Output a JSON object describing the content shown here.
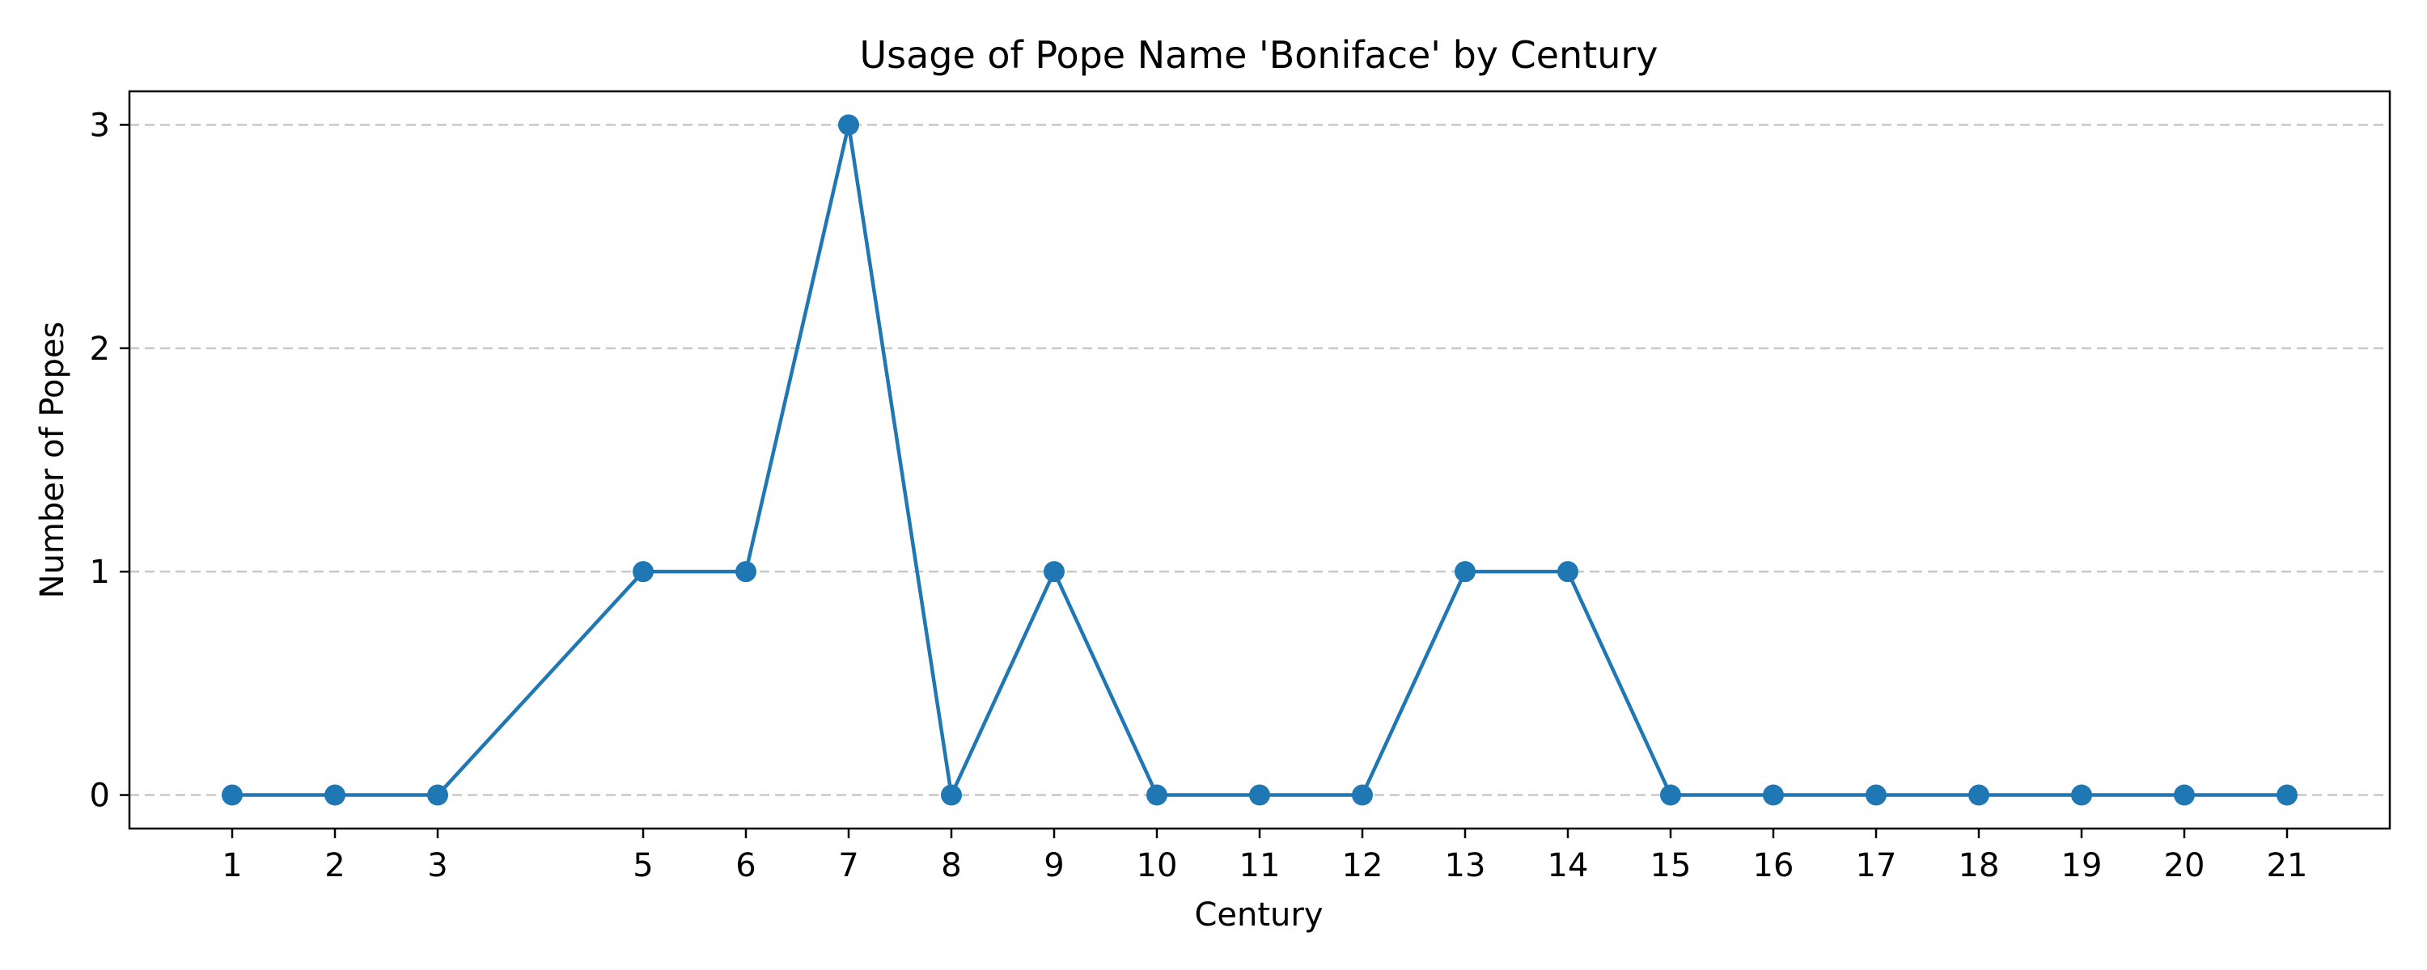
{
  "chart_data": {
    "type": "line",
    "title": "Usage of Pope Name 'Boniface' by Century",
    "xlabel": "Century",
    "ylabel": "Number of Popes",
    "x": [
      1,
      2,
      3,
      5,
      6,
      7,
      8,
      9,
      10,
      11,
      12,
      13,
      14,
      15,
      16,
      17,
      18,
      19,
      20,
      21
    ],
    "series": [
      {
        "values": [
          0,
          0,
          0,
          1,
          1,
          3,
          0,
          1,
          0,
          0,
          0,
          1,
          1,
          0,
          0,
          0,
          0,
          0,
          0,
          0
        ]
      }
    ],
    "xticks": [
      "1",
      "2",
      "3",
      "5",
      "6",
      "7",
      "8",
      "9",
      "10",
      "11",
      "12",
      "13",
      "14",
      "15",
      "16",
      "17",
      "18",
      "19",
      "20",
      "21"
    ],
    "yticks": [
      "0",
      "1",
      "2",
      "3"
    ],
    "xlim": [
      0,
      22
    ],
    "ylim": [
      -0.15,
      3.15
    ],
    "grid": "y-dashed",
    "legend": "none",
    "color": "#1f77b4",
    "marker": "circle"
  }
}
